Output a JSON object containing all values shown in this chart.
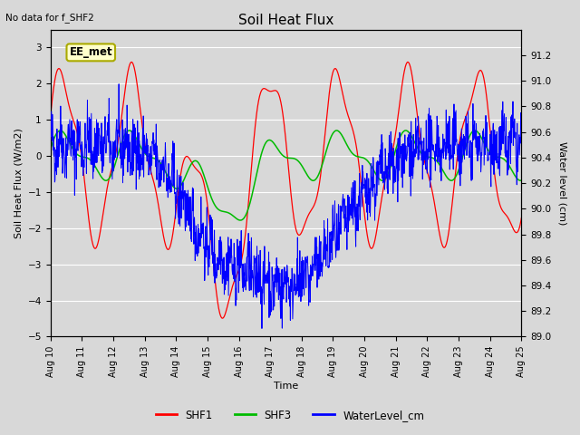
{
  "title": "Soil Heat Flux",
  "subtitle": "No data for f_SHF2",
  "xlabel": "Time",
  "ylabel_left": "Soil Heat Flux (W/m2)",
  "ylabel_right": "Water level (cm)",
  "annotation": "EE_met",
  "ylim_left": [
    -5.0,
    3.5
  ],
  "ylim_right": [
    89.0,
    91.4
  ],
  "yticks_left": [
    -5.0,
    -4.0,
    -3.0,
    -2.0,
    -1.0,
    0.0,
    1.0,
    2.0,
    3.0
  ],
  "yticks_right": [
    89.0,
    89.2,
    89.4,
    89.6,
    89.8,
    90.0,
    90.2,
    90.4,
    90.6,
    90.8,
    91.0,
    91.2
  ],
  "xtick_labels": [
    "Aug 10",
    "Aug 11",
    "Aug 12",
    "Aug 13",
    "Aug 14",
    "Aug 15",
    "Aug 16",
    "Aug 17",
    "Aug 18",
    "Aug 19",
    "Aug 20",
    "Aug 21",
    "Aug 22",
    "Aug 23",
    "Aug 24",
    "Aug 25"
  ],
  "colors": {
    "SHF1": "#ff0000",
    "SHF3": "#00bb00",
    "WaterLevel": "#0000ff"
  },
  "fig_bg": "#d8d8d8",
  "plot_bg": "#d8d8d8",
  "grid_color": "#ffffff"
}
